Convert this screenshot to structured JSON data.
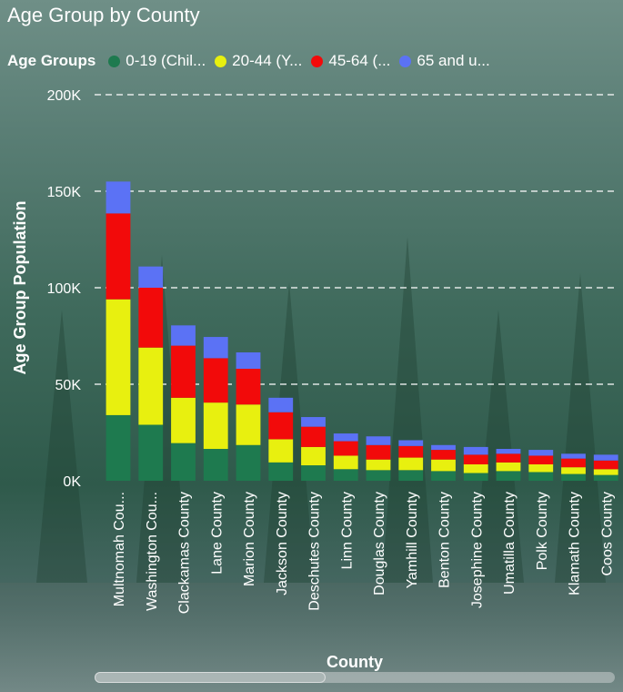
{
  "chart_data": {
    "type": "stacked-bar",
    "title": "Age Group by County",
    "legend_title": "Age Groups",
    "xlabel": "County",
    "ylabel": "Age Group Population",
    "ylim": [
      0,
      200000
    ],
    "yticks": [
      0,
      50000,
      100000,
      150000,
      200000
    ],
    "ytick_labels": [
      "0K",
      "50K",
      "100K",
      "150K",
      "200K"
    ],
    "grid": true,
    "categories": [
      "Multnomah Cou...",
      "Washington Cou...",
      "Clackamas County",
      "Lane County",
      "Marion County",
      "Jackson County",
      "Deschutes County",
      "Linn County",
      "Douglas County",
      "Yamhill County",
      "Benton County",
      "Josephine County",
      "Umatilla County",
      "Polk County",
      "Klamath County",
      "Coos County"
    ],
    "series": [
      {
        "name": "0-19 (Chil...",
        "color": "#1e7a4f",
        "values": [
          34000,
          29000,
          19500,
          16500,
          18500,
          9500,
          8000,
          6000,
          5500,
          5500,
          5000,
          4000,
          5000,
          4500,
          3500,
          3000
        ]
      },
      {
        "name": "20-44 (Y...",
        "color": "#e8f00f",
        "values": [
          60000,
          40000,
          23500,
          24000,
          21000,
          12000,
          9500,
          7000,
          5500,
          6500,
          6000,
          4500,
          4500,
          4000,
          3500,
          3000
        ]
      },
      {
        "name": "45-64 (...",
        "color": "#f20a0a",
        "values": [
          44500,
          31000,
          27000,
          23000,
          18500,
          14000,
          10500,
          7500,
          7500,
          6000,
          5000,
          5000,
          4500,
          4500,
          4500,
          4500
        ]
      },
      {
        "name": "65 and u...",
        "color": "#5b72f5",
        "values": [
          16500,
          11000,
          10500,
          11000,
          8500,
          7500,
          5000,
          4000,
          4500,
          3000,
          2500,
          4000,
          2500,
          3000,
          2500,
          3000
        ]
      }
    ]
  }
}
